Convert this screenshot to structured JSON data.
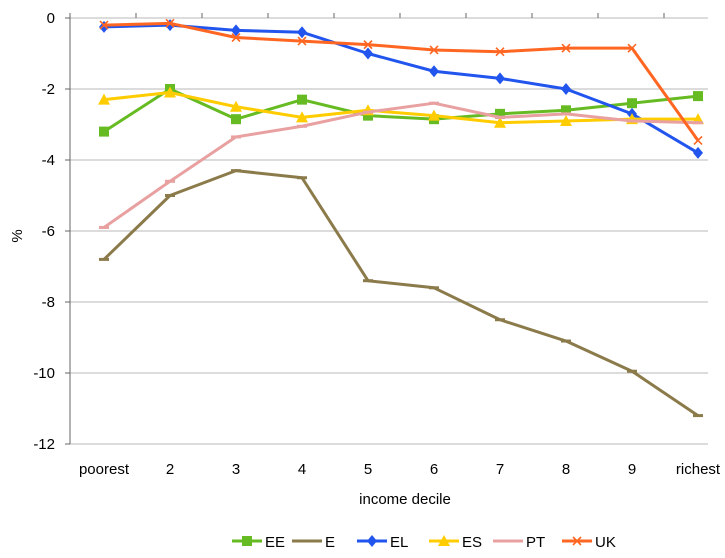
{
  "chart_data": {
    "type": "line",
    "title": "",
    "xlabel": "income decile",
    "ylabel": "%",
    "categories": [
      "poorest",
      "2",
      "3",
      "4",
      "5",
      "6",
      "7",
      "8",
      "9",
      "richest"
    ],
    "ylim": [
      -12,
      0
    ],
    "yticks": [
      0,
      -2,
      -4,
      -6,
      -8,
      -10,
      -12
    ],
    "grid": "horizontal",
    "legend_position": "bottom",
    "series": [
      {
        "name": "EE",
        "color": "#66bb22",
        "marker": "square",
        "values": [
          -3.2,
          -2.0,
          -2.85,
          -2.3,
          -2.75,
          -2.85,
          -2.7,
          -2.6,
          -2.4,
          -2.2
        ]
      },
      {
        "name": "E",
        "color": "#8b7a4a",
        "marker": "dash",
        "values": [
          -6.8,
          -5.0,
          -4.3,
          -4.5,
          -7.4,
          -7.6,
          -8.5,
          -9.1,
          -9.95,
          -11.2
        ]
      },
      {
        "name": "EL",
        "color": "#2255ee",
        "marker": "diamond",
        "values": [
          -0.25,
          -0.2,
          -0.35,
          -0.4,
          -1.0,
          -1.5,
          -1.7,
          -2.0,
          -2.7,
          -3.8
        ]
      },
      {
        "name": "ES",
        "color": "#ffcc00",
        "marker": "triangle",
        "values": [
          -2.3,
          -2.1,
          -2.5,
          -2.8,
          -2.6,
          -2.75,
          -2.95,
          -2.9,
          -2.85,
          -2.85
        ]
      },
      {
        "name": "PT",
        "color": "#e8a0a0",
        "marker": "dash",
        "values": [
          -5.9,
          -4.6,
          -3.35,
          -3.05,
          -2.65,
          -2.4,
          -2.8,
          -2.7,
          -2.9,
          -2.95
        ]
      },
      {
        "name": "UK",
        "color": "#ff6622",
        "marker": "x",
        "values": [
          -0.2,
          -0.15,
          -0.55,
          -0.65,
          -0.75,
          -0.9,
          -0.95,
          -0.85,
          -0.85,
          -3.45
        ]
      }
    ]
  }
}
